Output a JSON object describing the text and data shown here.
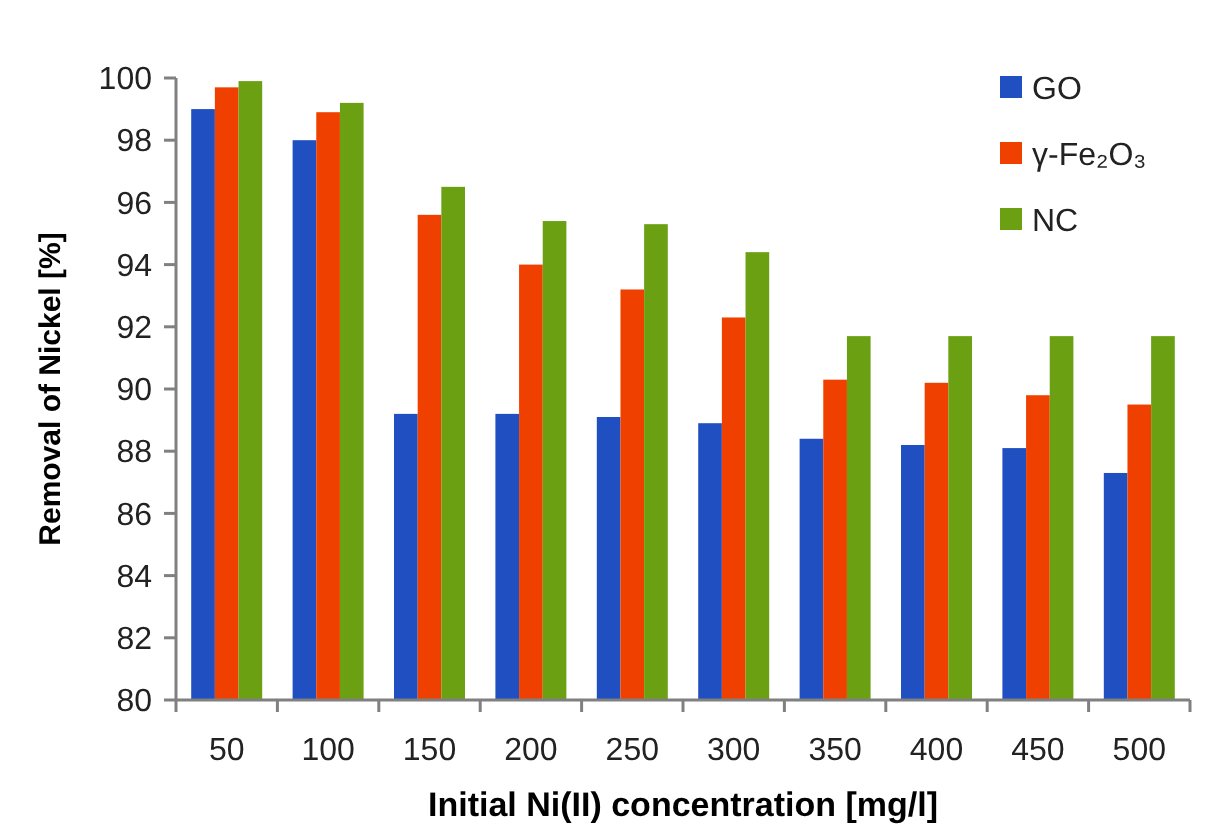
{
  "chart_data": {
    "type": "bar",
    "xlabel": "Initial Ni(II) concentration [mg/l]",
    "ylabel": "Removal of Nickel  [%]",
    "categories": [
      "50",
      "100",
      "150",
      "200",
      "250",
      "300",
      "350",
      "400",
      "450",
      "500"
    ],
    "series": [
      {
        "name": "GO",
        "color": "#1f4fc0",
        "values": [
          99,
          98,
          89.2,
          89.2,
          89.1,
          88.9,
          88.4,
          88.2,
          88.1,
          87.3
        ]
      },
      {
        "name": "γ-Fe₂O₃",
        "color": "#f04000",
        "values": [
          99.7,
          98.9,
          95.6,
          94.0,
          93.2,
          92.3,
          90.3,
          90.2,
          89.8,
          89.5
        ]
      },
      {
        "name": "NC",
        "color": "#6aa012",
        "values": [
          99.9,
          99.2,
          96.5,
          95.4,
          95.3,
          94.4,
          91.7,
          91.7,
          91.7,
          91.7
        ]
      }
    ],
    "ylim": [
      80,
      100
    ],
    "yticks": [
      80,
      82,
      84,
      86,
      88,
      90,
      92,
      94,
      96,
      98,
      100
    ],
    "grid": false,
    "legend": "top right"
  }
}
